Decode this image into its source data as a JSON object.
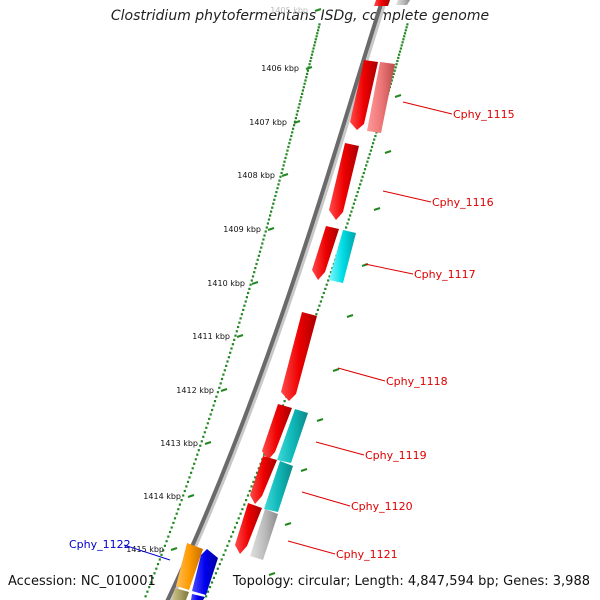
{
  "title": "Clostridium phytofermentans ISDg, complete genome",
  "footer": {
    "accession": "Accession: NC_010001",
    "stats": "Topology: circular; Length: 4,847,594 bp; Genes: 3,988"
  },
  "ruler": {
    "ticks": [
      "1405 kbp",
      "1406 kbp",
      "1407 kbp",
      "1408 kbp",
      "1409 kbp",
      "1410 kbp",
      "1411 kbp",
      "1412 kbp",
      "1413 kbp",
      "1414 kbp",
      "1415 kbp"
    ]
  },
  "genes": [
    {
      "label": "Cphy_1115",
      "color": "#e8000b"
    },
    {
      "label": "Cphy_1116",
      "color": "#e8000b"
    },
    {
      "label": "Cphy_1117",
      "color": "#e8000b"
    },
    {
      "label": "Cphy_1118",
      "color": "#e8000b"
    },
    {
      "label": "Cphy_1119",
      "color": "#e8000b"
    },
    {
      "label": "Cphy_1120",
      "color": "#e8000b"
    },
    {
      "label": "Cphy_1121",
      "color": "#e8000b"
    },
    {
      "label": "Cphy_1122",
      "color": "#0000cc"
    }
  ],
  "colors": {
    "forward_cds": "#ee0000",
    "light_cds": "#ee7777",
    "cyan_cds": "#00d8e0",
    "grey_cds": "#bbbbbb",
    "orange_cds": "#ff9900",
    "blue_cds": "#0000ee",
    "olive_cds": "#a8a060",
    "backbone": "#707070",
    "tick_dots": "#228822",
    "label_red": "#dd0000",
    "label_blue": "#0000cc"
  }
}
